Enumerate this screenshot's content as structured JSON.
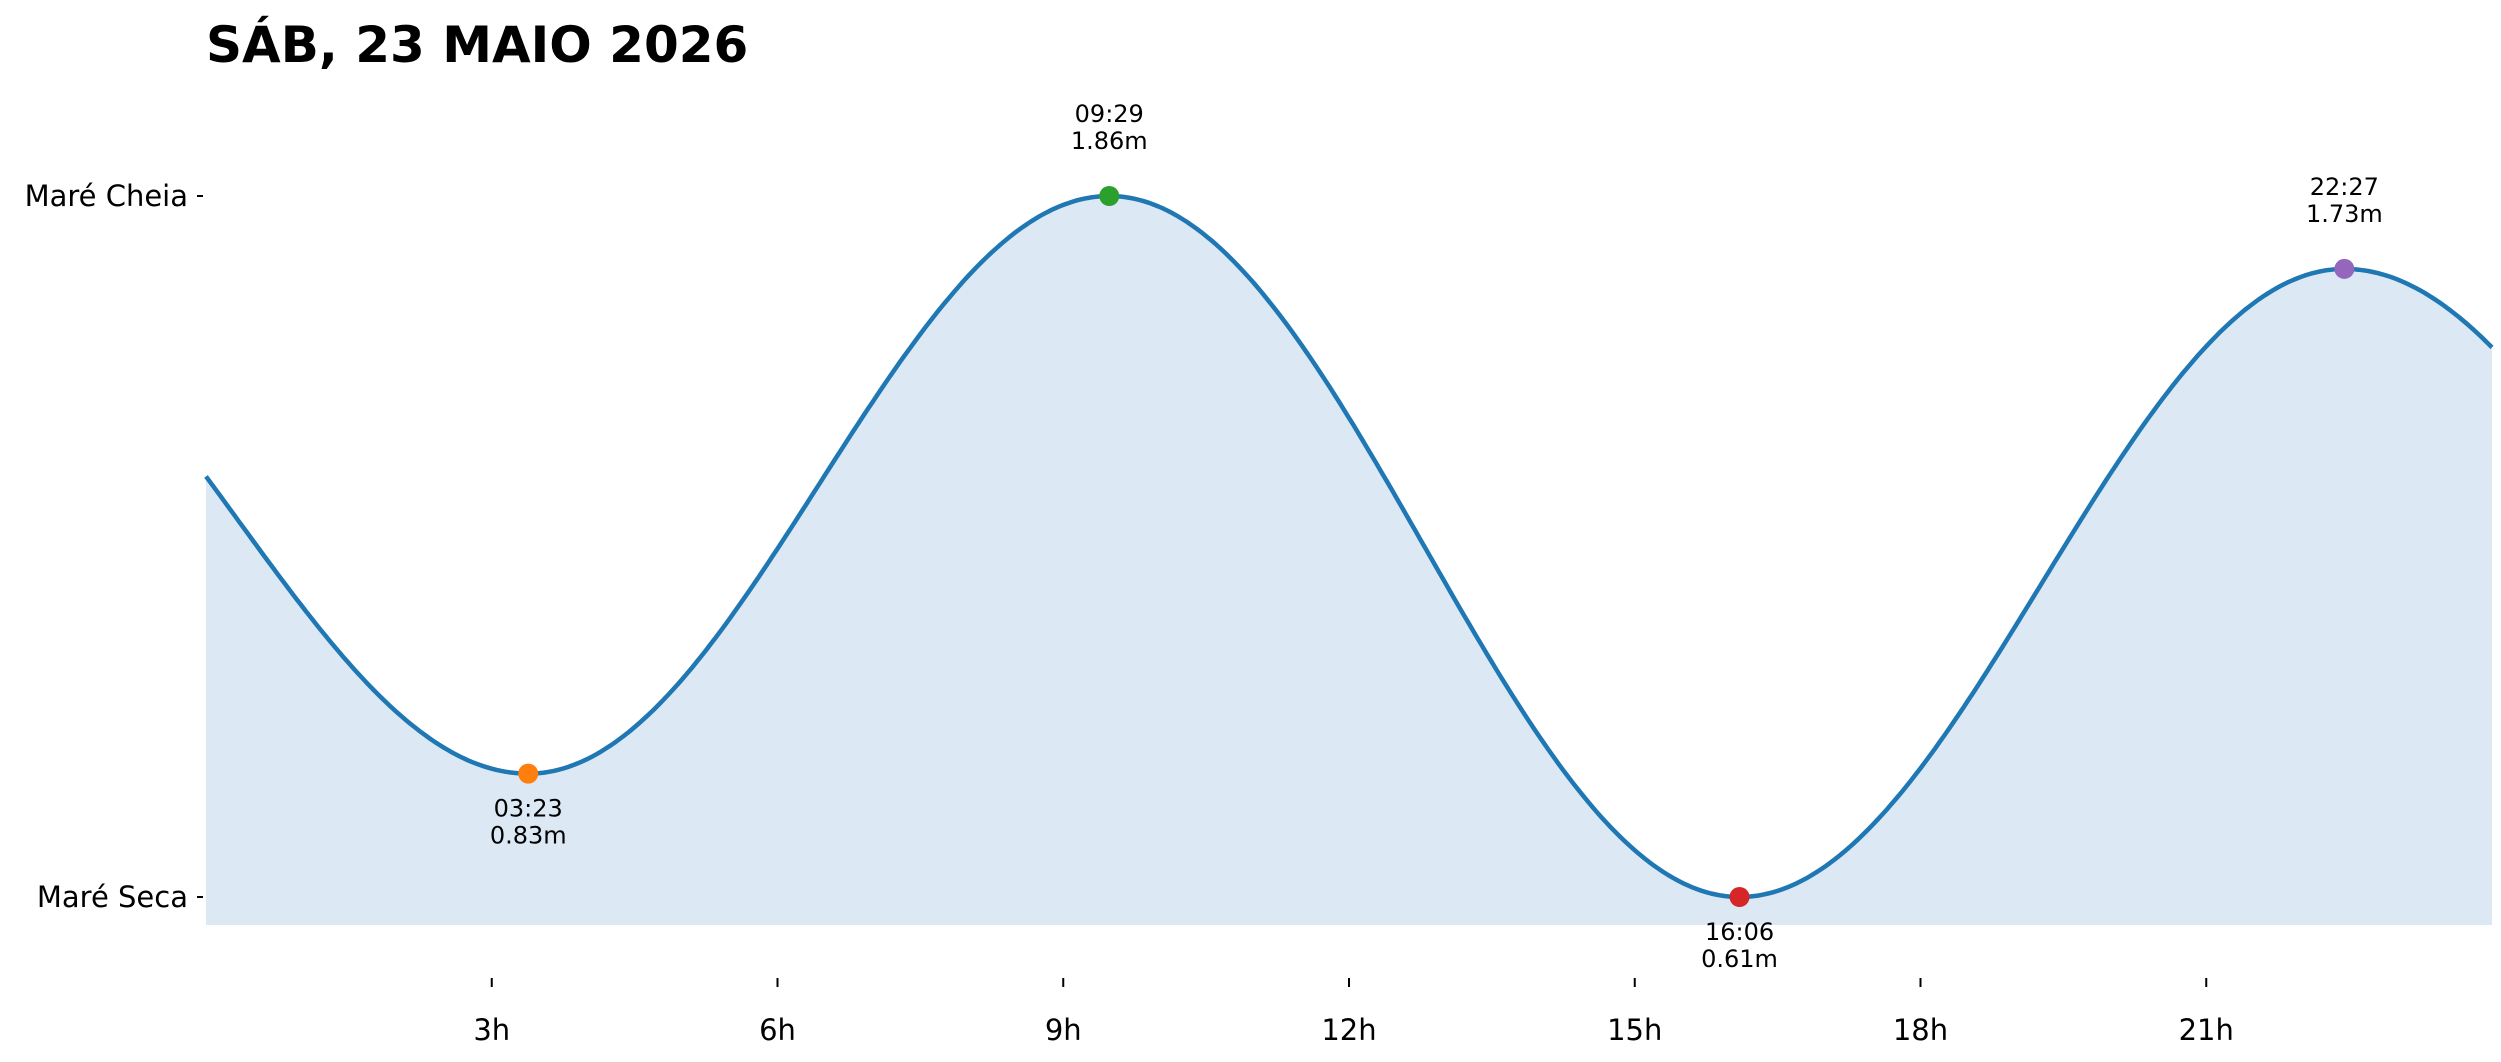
{
  "chart_data": {
    "type": "area",
    "title": "SÁB, 23 MAIO 2026",
    "xlabel": "",
    "ylabel": "",
    "xlim": [
      0,
      24
    ],
    "ylim": [
      0.51,
      1.86
    ],
    "x_ticks": [
      {
        "value": 3,
        "label": "3h"
      },
      {
        "value": 6,
        "label": "6h"
      },
      {
        "value": 9,
        "label": "9h"
      },
      {
        "value": 12,
        "label": "12h"
      },
      {
        "value": 15,
        "label": "15h"
      },
      {
        "value": 18,
        "label": "18h"
      },
      {
        "value": 21,
        "label": "21h"
      }
    ],
    "y_ticks": [
      {
        "value": 1.86,
        "label": "Maré Cheia"
      },
      {
        "value": 0.61,
        "label": "Maré Seca"
      }
    ],
    "extremes": [
      {
        "x": 3.383,
        "y": 0.83,
        "time": "03:23",
        "height": "0.83m",
        "color": "#ff7f0e",
        "label_pos": "below"
      },
      {
        "x": 9.483,
        "y": 1.86,
        "time": "09:29",
        "height": "1.86m",
        "color": "#2ca02c",
        "label_pos": "above"
      },
      {
        "x": 16.1,
        "y": 0.61,
        "time": "16:06",
        "height": "0.61m",
        "color": "#d62728",
        "label_pos": "below"
      },
      {
        "x": 22.45,
        "y": 1.73,
        "time": "22:27",
        "height": "1.73m",
        "color": "#9467bd",
        "label_pos": "above"
      }
    ],
    "series": [
      {
        "values_start": 1.36,
        "values_end": 1.59
      }
    ],
    "line_color": "#1f77b4",
    "fill_color": "#dce9f4",
    "grid": false,
    "legend": "none"
  }
}
